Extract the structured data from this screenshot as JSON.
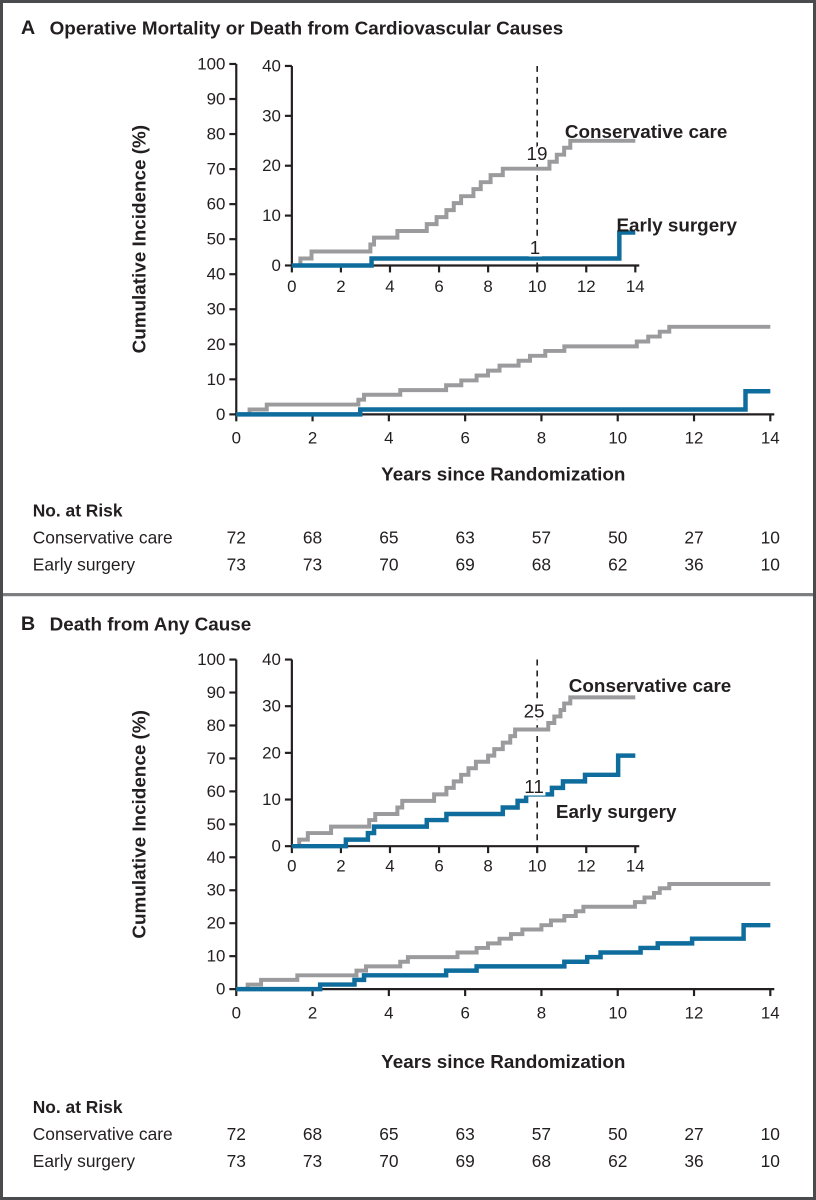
{
  "figure": {
    "type": "kaplan-meier-cumulative-incidence",
    "colors": {
      "conservative": "#9b9b9d",
      "surgery": "#0f6d9d",
      "axis": "#231f20",
      "divider": "#7b7c7e",
      "border": "#4a4b4d",
      "background": "#ffffff"
    }
  },
  "chart_data": [
    {
      "panel": "A",
      "type": "step",
      "title": "Operative Mortality or Death from Cardiovascular Causes",
      "xlabel": "Years since Randomization",
      "ylabel": "Cumulative Incidence (%)",
      "main_axis": {
        "xlim": [
          0,
          14
        ],
        "ylim": [
          0,
          100
        ],
        "xticks": [
          0,
          2,
          4,
          6,
          8,
          10,
          12,
          14
        ],
        "yticks": [
          0,
          10,
          20,
          30,
          40,
          50,
          60,
          70,
          80,
          90,
          100
        ],
        "grid": false
      },
      "inset_axis": {
        "xlim": [
          0,
          14
        ],
        "ylim": [
          0,
          40
        ],
        "xticks": [
          0,
          2,
          4,
          6,
          8,
          10,
          12,
          14
        ],
        "yticks": [
          0,
          10,
          20,
          30,
          40
        ],
        "dashed_line_x": 10
      },
      "series": [
        {
          "name": "Conservative care",
          "color": "#9b9b9d",
          "value_label_at_10yr": "19",
          "end_x": 14,
          "steps": [
            [
              0,
              0
            ],
            [
              0.35,
              1.4
            ],
            [
              0.8,
              2.8
            ],
            [
              3.2,
              4.2
            ],
            [
              3.35,
              5.6
            ],
            [
              4.3,
              6.9
            ],
            [
              5.5,
              8.3
            ],
            [
              5.9,
              9.7
            ],
            [
              6.3,
              11.1
            ],
            [
              6.6,
              12.5
            ],
            [
              6.9,
              13.9
            ],
            [
              7.4,
              15.3
            ],
            [
              7.7,
              16.7
            ],
            [
              8.1,
              18.1
            ],
            [
              8.6,
              19.4
            ],
            [
              10.5,
              20.8
            ],
            [
              10.8,
              22.2
            ],
            [
              11.1,
              23.6
            ],
            [
              11.35,
              25
            ]
          ]
        },
        {
          "name": "Early surgery",
          "color": "#0f6d9d",
          "value_label_at_10yr": "1",
          "end_x": 14,
          "steps": [
            [
              0,
              0
            ],
            [
              3.25,
              1.4
            ],
            [
              13.35,
              6.6
            ]
          ]
        }
      ],
      "risk_table": {
        "header": "No. at Risk",
        "time_points": [
          0,
          2,
          4,
          6,
          8,
          10,
          12,
          14
        ],
        "rows": [
          {
            "label": "Conservative care",
            "values": [
              "72",
              "68",
              "65",
              "63",
              "57",
              "50",
              "27",
              "10"
            ]
          },
          {
            "label": "Early surgery",
            "values": [
              "73",
              "73",
              "70",
              "69",
              "68",
              "62",
              "36",
              "10"
            ]
          }
        ]
      }
    },
    {
      "panel": "B",
      "type": "step",
      "title": "Death from Any Cause",
      "xlabel": "Years since Randomization",
      "ylabel": "Cumulative Incidence (%)",
      "main_axis": {
        "xlim": [
          0,
          14
        ],
        "ylim": [
          0,
          100
        ],
        "xticks": [
          0,
          2,
          4,
          6,
          8,
          10,
          12,
          14
        ],
        "yticks": [
          0,
          10,
          20,
          30,
          40,
          50,
          60,
          70,
          80,
          90,
          100
        ],
        "grid": false
      },
      "inset_axis": {
        "xlim": [
          0,
          14
        ],
        "ylim": [
          0,
          40
        ],
        "xticks": [
          0,
          2,
          4,
          6,
          8,
          10,
          12,
          14
        ],
        "yticks": [
          0,
          10,
          20,
          30,
          40
        ],
        "dashed_line_x": 10
      },
      "series": [
        {
          "name": "Conservative care",
          "color": "#9b9b9d",
          "value_label_at_10yr": "25",
          "end_x": 14,
          "steps": [
            [
              0,
              0
            ],
            [
              0.3,
              1.4
            ],
            [
              0.65,
              2.8
            ],
            [
              1.6,
              4.2
            ],
            [
              3.15,
              5.6
            ],
            [
              3.4,
              6.9
            ],
            [
              4.3,
              8.3
            ],
            [
              4.5,
              9.7
            ],
            [
              5.8,
              11.1
            ],
            [
              6.3,
              12.5
            ],
            [
              6.6,
              13.9
            ],
            [
              6.9,
              15.3
            ],
            [
              7.2,
              16.7
            ],
            [
              7.5,
              18.1
            ],
            [
              8.0,
              19.4
            ],
            [
              8.25,
              20.8
            ],
            [
              8.6,
              22.2
            ],
            [
              8.9,
              23.6
            ],
            [
              9.1,
              25
            ],
            [
              10.45,
              26.4
            ],
            [
              10.7,
              27.8
            ],
            [
              10.95,
              29.2
            ],
            [
              11.1,
              30.6
            ],
            [
              11.35,
              31.9
            ]
          ]
        },
        {
          "name": "Early surgery",
          "color": "#0f6d9d",
          "value_label_at_10yr": "11",
          "end_x": 14,
          "steps": [
            [
              0,
              0
            ],
            [
              2.2,
              1.4
            ],
            [
              3.1,
              2.8
            ],
            [
              3.35,
              4.2
            ],
            [
              5.5,
              5.6
            ],
            [
              6.3,
              6.9
            ],
            [
              8.6,
              8.3
            ],
            [
              9.2,
              9.7
            ],
            [
              9.55,
              11.1
            ],
            [
              10.6,
              12.5
            ],
            [
              11.05,
              13.9
            ],
            [
              11.95,
              15.3
            ],
            [
              13.3,
              19.4
            ]
          ]
        }
      ],
      "risk_table": {
        "header": "No. at Risk",
        "time_points": [
          0,
          2,
          4,
          6,
          8,
          10,
          12,
          14
        ],
        "rows": [
          {
            "label": "Conservative care",
            "values": [
              "72",
              "68",
              "65",
              "63",
              "57",
              "50",
              "27",
              "10"
            ]
          },
          {
            "label": "Early surgery",
            "values": [
              "73",
              "73",
              "70",
              "69",
              "68",
              "62",
              "36",
              "10"
            ]
          }
        ]
      }
    }
  ]
}
